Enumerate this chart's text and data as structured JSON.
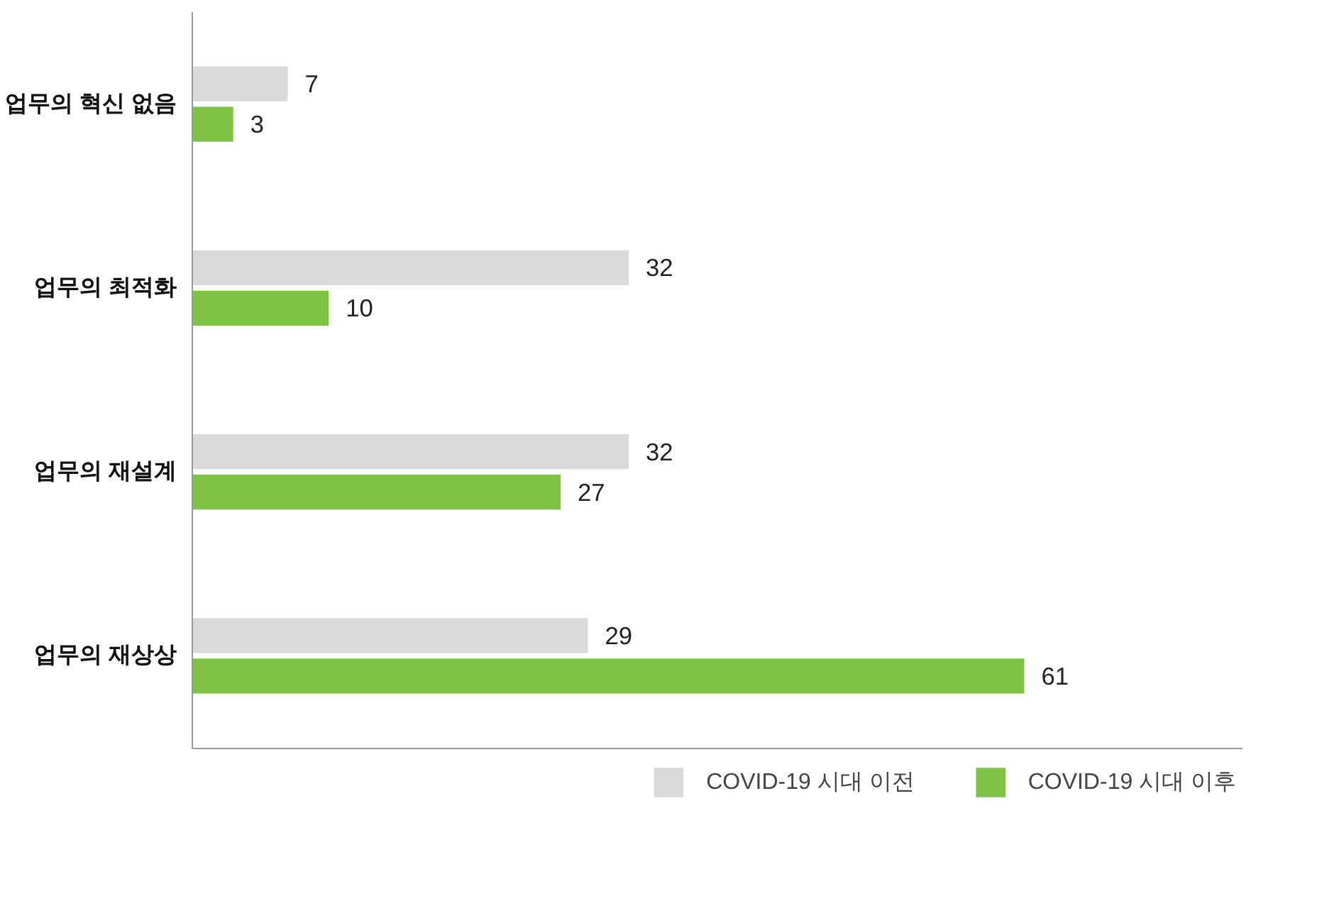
{
  "chart_data": {
    "type": "bar",
    "orientation": "horizontal",
    "categories": [
      "업무의 혁신 없음",
      "업무의 최적화",
      "업무의 재설계",
      "업무의 재상상"
    ],
    "series": [
      {
        "name": "COVID-19 시대 이전",
        "color": "#d9d9d9",
        "values": [
          7,
          32,
          32,
          29
        ]
      },
      {
        "name": "COVID-19 시대 이후",
        "color": "#7dc242",
        "values": [
          3,
          10,
          27,
          61
        ]
      }
    ],
    "xlim": [
      0,
      77
    ],
    "tick_labels": "y",
    "data_labels": true,
    "legend": "bottom right",
    "grid": false
  }
}
